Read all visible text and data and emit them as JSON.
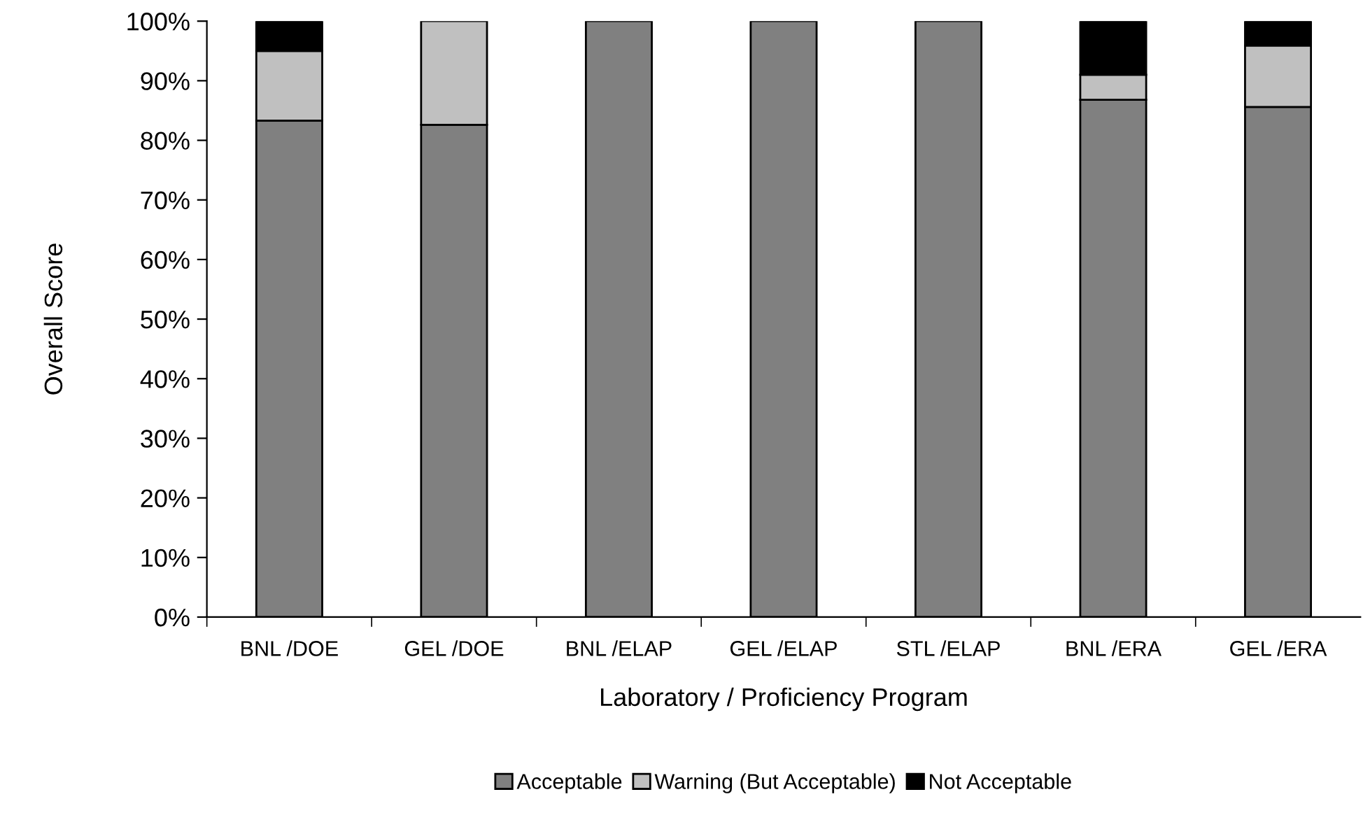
{
  "chart_data": {
    "type": "bar",
    "stacked": true,
    "xlabel": "Laboratory / Proficiency Program",
    "ylabel": "Overall Score",
    "categories": [
      "BNL /DOE",
      "GEL /DOE",
      "BNL /ELAP",
      "GEL /ELAP",
      "STL /ELAP",
      "BNL /ERA",
      "GEL /ERA"
    ],
    "series": [
      {
        "name": "Acceptable",
        "color": "#808080",
        "values": [
          83.3,
          82.6,
          100,
          100,
          100,
          86.8,
          85.6
        ]
      },
      {
        "name": "Warning (But Acceptable)",
        "color": "#c0c0c0",
        "values": [
          11.7,
          17.4,
          0,
          0,
          0,
          4.2,
          10.3
        ]
      },
      {
        "name": "Not Acceptable",
        "color": "#000000",
        "values": [
          5,
          0,
          0,
          0,
          0,
          9,
          4.1
        ]
      }
    ],
    "ylim": [
      0,
      100
    ],
    "yticks": [
      {
        "value": 0,
        "label": "0%"
      },
      {
        "value": 10,
        "label": "10%"
      },
      {
        "value": 20,
        "label": "20%"
      },
      {
        "value": 30,
        "label": "30%"
      },
      {
        "value": 40,
        "label": "40%"
      },
      {
        "value": 50,
        "label": "50%"
      },
      {
        "value": 60,
        "label": "60%"
      },
      {
        "value": 70,
        "label": "70%"
      },
      {
        "value": 80,
        "label": "80%"
      },
      {
        "value": 90,
        "label": "90%"
      },
      {
        "value": 100,
        "label": "100%"
      }
    ],
    "grid": false,
    "legend": "bottom"
  }
}
